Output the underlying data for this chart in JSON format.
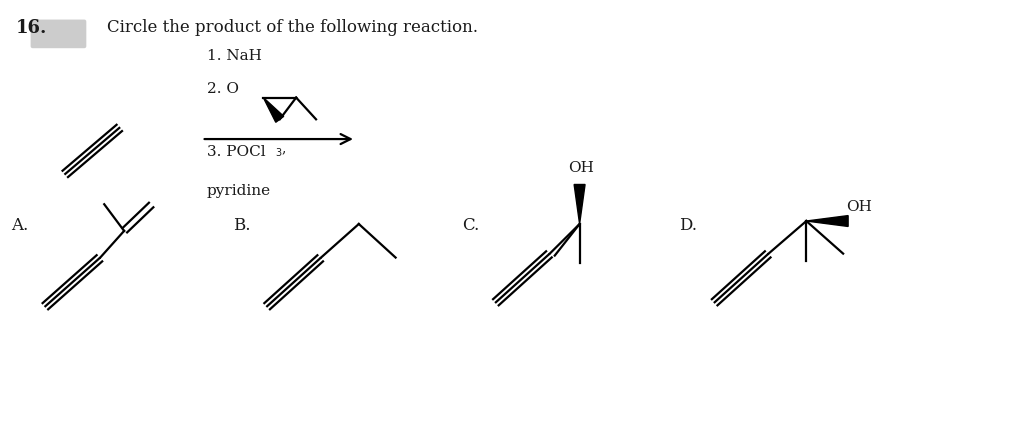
{
  "title_text": "16.",
  "question_text": "Circle the product of the following reaction.",
  "reagents_line1": "1. NaH",
  "reagents_line2": "2. O",
  "reagents_line3": "3. POCl",
  "reagents_line4": "pyridine",
  "label_A": "A.",
  "label_B": "B.",
  "label_C": "C.",
  "label_D": "D.",
  "bg_color": "#ffffff",
  "line_color": "#000000",
  "text_color": "#1a1a1a",
  "fig_width": 10.12,
  "fig_height": 4.46
}
